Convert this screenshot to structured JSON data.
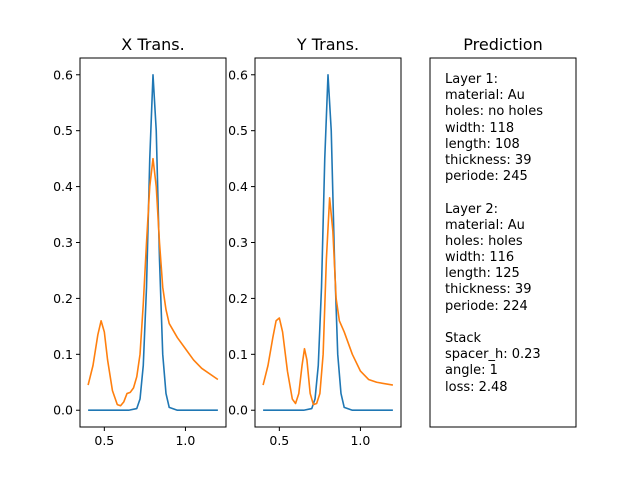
{
  "colors": {
    "series_a": "#1f77b4",
    "series_b": "#ff7f0e"
  },
  "chart_data": [
    {
      "type": "line",
      "title": "X Trans.",
      "xlim": [
        0.35,
        1.25
      ],
      "ylim": [
        -0.03,
        0.63
      ],
      "xticks": [
        0.5,
        1.0
      ],
      "xtick_labels": [
        "0.5",
        "1.0"
      ],
      "yticks": [
        0.0,
        0.1,
        0.2,
        0.3,
        0.4,
        0.5,
        0.6
      ],
      "ytick_labels": [
        "0.0",
        "0.1",
        "0.2",
        "0.3",
        "0.4",
        "0.5",
        "0.6"
      ],
      "grid": false,
      "series": [
        {
          "x": [
            0.4,
            0.45,
            0.5,
            0.55,
            0.6,
            0.65,
            0.7,
            0.72,
            0.74,
            0.76,
            0.78,
            0.8,
            0.82,
            0.84,
            0.86,
            0.88,
            0.9,
            0.95,
            1.0,
            1.1,
            1.2
          ],
          "y": [
            0.0,
            0.0,
            0.0,
            0.0,
            0.0,
            0.0,
            0.003,
            0.02,
            0.08,
            0.22,
            0.45,
            0.6,
            0.5,
            0.27,
            0.1,
            0.03,
            0.005,
            0.0,
            0.0,
            0.0,
            0.0
          ]
        },
        {
          "x": [
            0.4,
            0.43,
            0.46,
            0.48,
            0.5,
            0.52,
            0.55,
            0.58,
            0.6,
            0.62,
            0.64,
            0.66,
            0.68,
            0.7,
            0.72,
            0.74,
            0.76,
            0.78,
            0.8,
            0.82,
            0.84,
            0.86,
            0.88,
            0.9,
            0.95,
            1.0,
            1.05,
            1.1,
            1.2
          ],
          "y": [
            0.045,
            0.08,
            0.135,
            0.16,
            0.14,
            0.09,
            0.035,
            0.01,
            0.008,
            0.015,
            0.03,
            0.032,
            0.04,
            0.06,
            0.1,
            0.19,
            0.3,
            0.4,
            0.45,
            0.4,
            0.3,
            0.22,
            0.18,
            0.155,
            0.13,
            0.11,
            0.09,
            0.075,
            0.055
          ]
        }
      ]
    },
    {
      "type": "line",
      "title": "Y Trans.",
      "xlim": [
        0.35,
        1.25
      ],
      "ylim": [
        -0.03,
        0.63
      ],
      "xticks": [
        0.5,
        1.0
      ],
      "xtick_labels": [
        "0.5",
        "1.0"
      ],
      "yticks": [
        0.0,
        0.1,
        0.2,
        0.3,
        0.4,
        0.5,
        0.6
      ],
      "ytick_labels": [
        "0.0",
        "0.1",
        "0.2",
        "0.3",
        "0.4",
        "0.5",
        "0.6"
      ],
      "grid": false,
      "series": [
        {
          "x": [
            0.4,
            0.45,
            0.5,
            0.55,
            0.6,
            0.65,
            0.7,
            0.72,
            0.74,
            0.76,
            0.78,
            0.8,
            0.82,
            0.84,
            0.86,
            0.88,
            0.9,
            0.95,
            1.0,
            1.1,
            1.2
          ],
          "y": [
            0.0,
            0.0,
            0.0,
            0.0,
            0.0,
            0.0,
            0.003,
            0.02,
            0.08,
            0.22,
            0.45,
            0.6,
            0.5,
            0.27,
            0.1,
            0.03,
            0.005,
            0.0,
            0.0,
            0.0,
            0.0
          ]
        },
        {
          "x": [
            0.4,
            0.43,
            0.46,
            0.48,
            0.5,
            0.52,
            0.55,
            0.58,
            0.6,
            0.62,
            0.64,
            0.655,
            0.67,
            0.69,
            0.71,
            0.73,
            0.75,
            0.77,
            0.79,
            0.81,
            0.83,
            0.85,
            0.87,
            0.9,
            0.95,
            1.0,
            1.05,
            1.1,
            1.2
          ],
          "y": [
            0.045,
            0.08,
            0.13,
            0.16,
            0.165,
            0.14,
            0.07,
            0.02,
            0.012,
            0.03,
            0.08,
            0.11,
            0.09,
            0.03,
            0.01,
            0.012,
            0.03,
            0.1,
            0.27,
            0.38,
            0.32,
            0.2,
            0.16,
            0.14,
            0.1,
            0.07,
            0.055,
            0.05,
            0.045
          ]
        }
      ]
    }
  ],
  "prediction": {
    "title": "Prediction",
    "lines": [
      "Layer 1:",
      "material: Au",
      "holes: no holes",
      "width: 118",
      "length: 108",
      "thickness: 39",
      "periode: 245",
      "",
      "Layer 2:",
      "material: Au",
      "holes: holes",
      "width: 116",
      "length: 125",
      "thickness: 39",
      "periode: 224",
      "",
      "Stack",
      "spacer_h: 0.23",
      "angle: 1",
      "loss: 2.48"
    ]
  }
}
